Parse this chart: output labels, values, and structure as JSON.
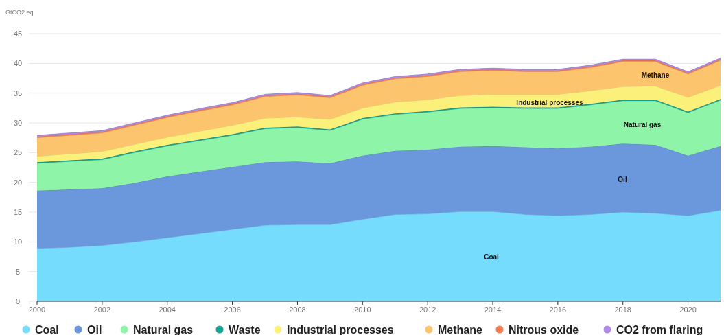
{
  "chart_data": {
    "type": "area",
    "stacked": true,
    "ylabel": "GtCO2 eq",
    "x": [
      2000,
      2001,
      2002,
      2003,
      2004,
      2005,
      2006,
      2007,
      2008,
      2009,
      2010,
      2011,
      2012,
      2013,
      2014,
      2015,
      2016,
      2017,
      2018,
      2019,
      2020,
      2021
    ],
    "xlim": [
      2000,
      2021
    ],
    "xticks": [
      2000,
      2002,
      2004,
      2006,
      2008,
      2010,
      2012,
      2014,
      2016,
      2018,
      2020
    ],
    "ylim": [
      0,
      45
    ],
    "yticks": [
      0,
      5,
      10,
      15,
      20,
      25,
      30,
      35,
      40,
      45
    ],
    "grid": "y",
    "legend": "bottom",
    "series": [
      {
        "name": "Coal",
        "color": "#75dcfd",
        "values": [
          8.9,
          9.1,
          9.4,
          10.0,
          10.7,
          11.4,
          12.1,
          12.8,
          12.9,
          12.9,
          13.8,
          14.6,
          14.7,
          15.1,
          15.1,
          14.6,
          14.4,
          14.6,
          15.0,
          14.8,
          14.4,
          15.3
        ]
      },
      {
        "name": "Oil",
        "color": "#6b98dc",
        "values": [
          9.7,
          9.7,
          9.6,
          9.9,
          10.3,
          10.4,
          10.5,
          10.6,
          10.6,
          10.3,
          10.7,
          10.7,
          10.8,
          10.9,
          11.0,
          11.3,
          11.3,
          11.4,
          11.5,
          11.5,
          10.1,
          10.8
        ]
      },
      {
        "name": "Natural gas",
        "color": "#8ef4a8",
        "values": [
          4.6,
          4.7,
          4.8,
          5.1,
          5.1,
          5.2,
          5.3,
          5.6,
          5.7,
          5.5,
          6.1,
          6.1,
          6.3,
          6.4,
          6.4,
          6.5,
          6.7,
          7.0,
          7.2,
          7.4,
          7.2,
          7.7
        ]
      },
      {
        "name": "Waste",
        "color": "#13a28e",
        "values": [
          0.2,
          0.2,
          0.2,
          0.2,
          0.2,
          0.2,
          0.2,
          0.2,
          0.2,
          0.2,
          0.2,
          0.2,
          0.2,
          0.2,
          0.2,
          0.2,
          0.2,
          0.2,
          0.2,
          0.2,
          0.2,
          0.2
        ]
      },
      {
        "name": "Industrial processes",
        "color": "#fbf07a",
        "values": [
          1.0,
          1.1,
          1.2,
          1.2,
          1.3,
          1.4,
          1.5,
          1.6,
          1.6,
          1.7,
          1.7,
          1.9,
          1.9,
          2.0,
          2.1,
          2.2,
          2.2,
          2.2,
          2.2,
          2.3,
          2.4,
          2.3
        ]
      },
      {
        "name": "Methane",
        "color": "#fdc46e",
        "values": [
          3.1,
          3.1,
          3.1,
          3.2,
          3.3,
          3.4,
          3.4,
          3.6,
          3.7,
          3.6,
          3.8,
          3.9,
          3.9,
          4.0,
          4.0,
          3.8,
          3.8,
          3.9,
          4.2,
          4.1,
          3.9,
          4.2
        ]
      },
      {
        "name": "Nitrous oxide",
        "color": "#f47a50",
        "values": [
          0.2,
          0.2,
          0.2,
          0.2,
          0.2,
          0.2,
          0.2,
          0.2,
          0.2,
          0.2,
          0.2,
          0.2,
          0.2,
          0.2,
          0.2,
          0.2,
          0.2,
          0.2,
          0.2,
          0.2,
          0.2,
          0.2
        ]
      },
      {
        "name": "CO2 from flaring",
        "color": "#b08ce8",
        "values": [
          0.2,
          0.2,
          0.2,
          0.2,
          0.2,
          0.2,
          0.2,
          0.2,
          0.2,
          0.2,
          0.2,
          0.2,
          0.2,
          0.2,
          0.2,
          0.2,
          0.2,
          0.2,
          0.2,
          0.2,
          0.2,
          0.2
        ]
      }
    ],
    "annotations": [
      "Coal",
      "Oil",
      "Natural gas",
      "Industrial processes",
      "Methane"
    ]
  }
}
